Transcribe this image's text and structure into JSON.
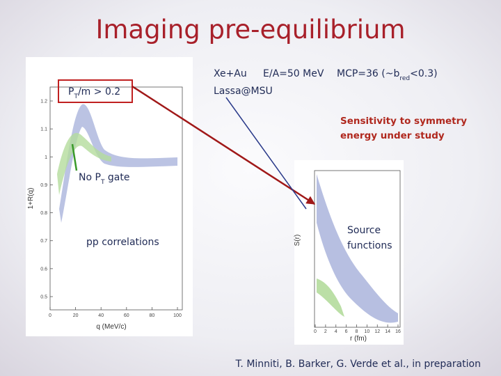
{
  "header": {
    "title": "Imaging pre-equilibrium"
  },
  "info": {
    "reaction": "Xe+Au",
    "energy": "E/A=50 MeV",
    "lab": "Lassa@MSU",
    "mcp": {
      "before": "MCP=36 (~b",
      "sub": "red",
      "after": "<0.3)"
    }
  },
  "notes": {
    "sensitivity": [
      "Sensitivity to symmetry",
      "energy under study"
    ],
    "pt_cut": {
      "before": "P",
      "sub": "T",
      "after": "/m > 0.2"
    },
    "no_gate": {
      "before": "No P",
      "sub": "T",
      "after": " gate"
    },
    "pp": "pp correlations",
    "source": [
      "Source",
      "functions"
    ]
  },
  "left_plot": {
    "ylabel": "1+R(q)",
    "xlabel": "q (MeV/c)",
    "yticks": [
      0.5,
      0.6,
      0.7,
      0.8,
      0.9,
      1,
      1.1,
      1.2
    ],
    "xticks": [
      0,
      20,
      40,
      60,
      80,
      100
    ]
  },
  "right_plot": {
    "ylabel": "S(r)",
    "xlabel": "r (fm)",
    "xticks": [
      0,
      2,
      4,
      6,
      8,
      10,
      12,
      14,
      16
    ]
  },
  "citation": "T. Minniti, B. Barker, G. Verde et al., in preparation"
}
